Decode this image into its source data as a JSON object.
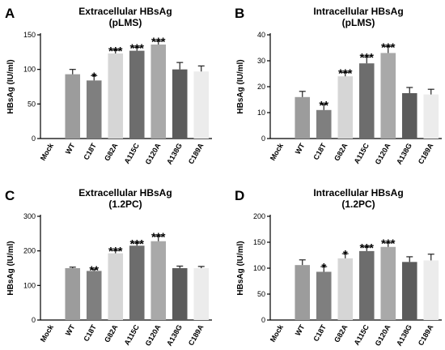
{
  "colors": {
    "bar_colors": [
      "#9c9c9c",
      "#7f7f7f",
      "#d6d6d6",
      "#6d6d6d",
      "#a9a9a9",
      "#5b5b5b",
      "#ececec"
    ],
    "error_bar": "#222222"
  },
  "chart_data": [
    {
      "type": "bar",
      "panel": "A",
      "title": "Extracellular HBsAg",
      "subtitle": "(pLMS)",
      "ylabel": "HBsAg (IU/ml)",
      "ylim": [
        0,
        150
      ],
      "yticks": [
        "0",
        "50",
        "100",
        "150"
      ],
      "categories": [
        "Mock",
        "WT",
        "C18T",
        "G82A",
        "A115C",
        "G120A",
        "A138G",
        "C189A"
      ],
      "values": [
        0,
        93,
        84,
        123,
        127,
        136,
        100,
        97
      ],
      "errors": [
        0,
        7,
        7,
        5,
        5,
        5,
        10,
        8
      ],
      "significance": [
        "",
        "",
        "*",
        "***",
        "***",
        "***",
        "",
        ""
      ]
    },
    {
      "type": "bar",
      "panel": "B",
      "title": "Intracellular HBsAg",
      "subtitle": "(pLMS)",
      "ylabel": "HBsAg (IU/ml)",
      "ylim": [
        0,
        40
      ],
      "yticks": [
        "0",
        "10",
        "20",
        "30",
        "40"
      ],
      "categories": [
        "Mock",
        "WT",
        "C18T",
        "G82A",
        "A115C",
        "G120A",
        "A138G",
        "C189A"
      ],
      "values": [
        0,
        16,
        11,
        24,
        29,
        33,
        17.5,
        17
      ],
      "errors": [
        0,
        2.2,
        2.2,
        1.5,
        2.5,
        2.5,
        2.2,
        2
      ],
      "significance": [
        "",
        "",
        "**",
        "***",
        "***",
        "***",
        "",
        ""
      ]
    },
    {
      "type": "bar",
      "panel": "C",
      "title": "Extracellular HBsAg",
      "subtitle": "(1.2PC)",
      "ylabel": "HBsAg (IU/ml)",
      "ylim": [
        0,
        300
      ],
      "yticks": [
        "0",
        "100",
        "200",
        "300"
      ],
      "categories": [
        "Mock",
        "WT",
        "C18T",
        "G82A",
        "A115C",
        "G120A",
        "A138G",
        "C189A"
      ],
      "values": [
        0,
        150,
        142,
        193,
        215,
        228,
        150,
        150
      ],
      "errors": [
        0,
        3,
        5,
        8,
        8,
        15,
        6,
        5
      ],
      "significance": [
        "",
        "",
        "**",
        "***",
        "***",
        "***",
        "",
        ""
      ]
    },
    {
      "type": "bar",
      "panel": "D",
      "title": "Intracellular HBsAg",
      "subtitle": "(1.2PC)",
      "ylabel": "HBsAg (IU/ml)",
      "ylim": [
        0,
        200
      ],
      "yticks": [
        "0",
        "50",
        "100",
        "150",
        "200"
      ],
      "categories": [
        "Mock",
        "WT",
        "C18T",
        "G82A",
        "A115C",
        "G120A",
        "A138G",
        "C189A"
      ],
      "values": [
        0,
        106,
        93,
        119,
        133,
        141,
        112,
        115
      ],
      "errors": [
        0,
        10,
        10,
        9,
        8,
        8,
        10,
        12
      ],
      "significance": [
        "",
        "",
        "*",
        "*",
        "***",
        "***",
        "",
        ""
      ]
    }
  ]
}
